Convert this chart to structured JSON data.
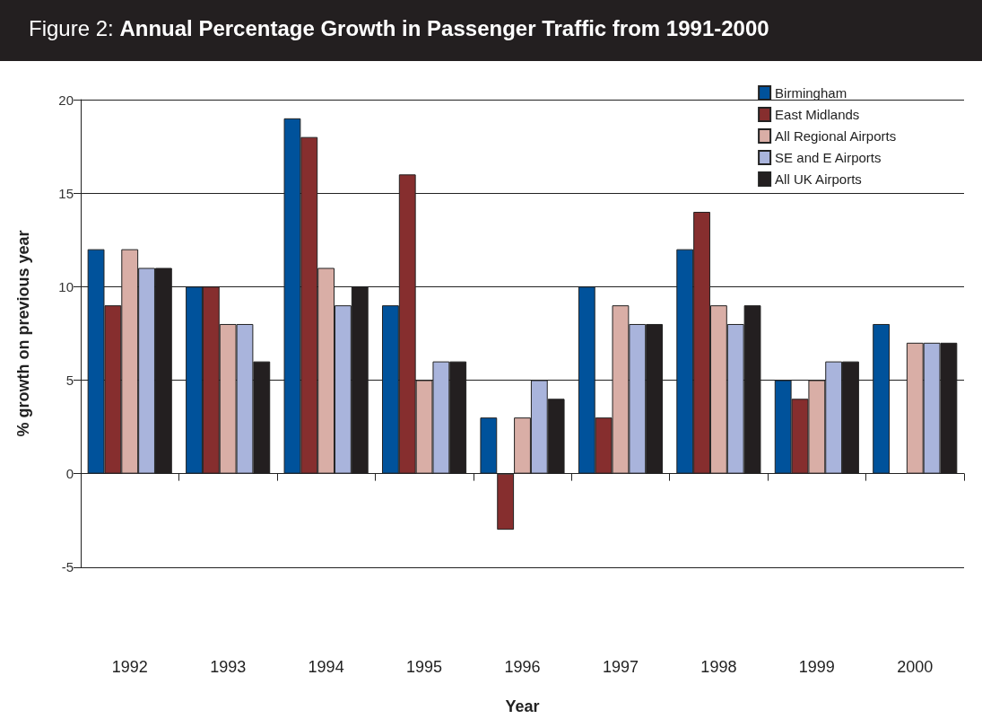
{
  "chart_data": {
    "type": "bar",
    "title": "Figure 2: Annual Percentage Growth in Passenger Traffic from 1991-2000",
    "xlabel": "Year",
    "ylabel": "% growth on previous year",
    "categories": [
      "1992",
      "1993",
      "1994",
      "1995",
      "1996",
      "1997",
      "1998",
      "1999",
      "2000"
    ],
    "series": [
      {
        "name": "Birmingham",
        "color": "#00529b",
        "values": [
          12,
          10,
          19,
          9,
          3,
          10,
          12,
          5,
          8
        ]
      },
      {
        "name": "East Midlands",
        "color": "#862e2e",
        "values": [
          9,
          10,
          18,
          16,
          -3,
          3,
          14,
          4,
          null
        ]
      },
      {
        "name": "All Regional Airports",
        "color": "#d9aea6",
        "values": [
          12,
          8,
          11,
          5,
          3,
          9,
          9,
          5,
          7
        ]
      },
      {
        "name": "SE and E Airports",
        "color": "#a9b4dc",
        "values": [
          11,
          8,
          9,
          6,
          5,
          8,
          8,
          6,
          7
        ]
      },
      {
        "name": "All UK Airports",
        "color": "#231f20",
        "values": [
          11,
          6,
          10,
          6,
          4,
          8,
          9,
          6,
          7
        ]
      }
    ],
    "ylim": [
      -5,
      20
    ],
    "yticks": [
      -5,
      0,
      5,
      10,
      15,
      20
    ],
    "grid": "y",
    "legend": "top right"
  }
}
